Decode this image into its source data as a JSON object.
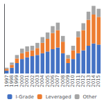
{
  "chart_data": {
    "type": "bar",
    "stacked": true,
    "categories": [
      "1997",
      "1998",
      "1999",
      "2000",
      "2001",
      "2002",
      "2003",
      "2004",
      "2005",
      "2006",
      "2007",
      "2008",
      "2009",
      "2010",
      "2011",
      "2012",
      "2013",
      "2014",
      "2015"
    ],
    "series": [
      {
        "name": "I-Grade",
        "color": "#4472C4",
        "values": [
          0.5,
          1.0,
          1.8,
          2.5,
          2.8,
          3.0,
          3.2,
          3.5,
          3.8,
          4.2,
          4.5,
          3.5,
          1.8,
          2.5,
          3.5,
          4.0,
          4.8,
          5.2,
          5.0
        ]
      },
      {
        "name": "Leveraged",
        "color": "#ED7D31",
        "values": [
          0.3,
          0.5,
          0.8,
          1.0,
          1.0,
          1.0,
          1.2,
          1.8,
          2.2,
          2.8,
          3.0,
          2.0,
          0.8,
          1.5,
          2.8,
          3.5,
          4.5,
          5.0,
          4.8
        ]
      },
      {
        "name": "Other",
        "color": "#A5A5A5",
        "values": [
          0.2,
          0.4,
          0.6,
          0.8,
          0.9,
          0.8,
          0.9,
          1.0,
          1.1,
          1.2,
          1.3,
          1.0,
          0.6,
          0.8,
          1.0,
          1.2,
          1.4,
          1.5,
          1.4
        ]
      }
    ],
    "ylim": [
      0,
      12
    ],
    "grid": false,
    "tick_labels": "x",
    "legend": "bottom"
  }
}
